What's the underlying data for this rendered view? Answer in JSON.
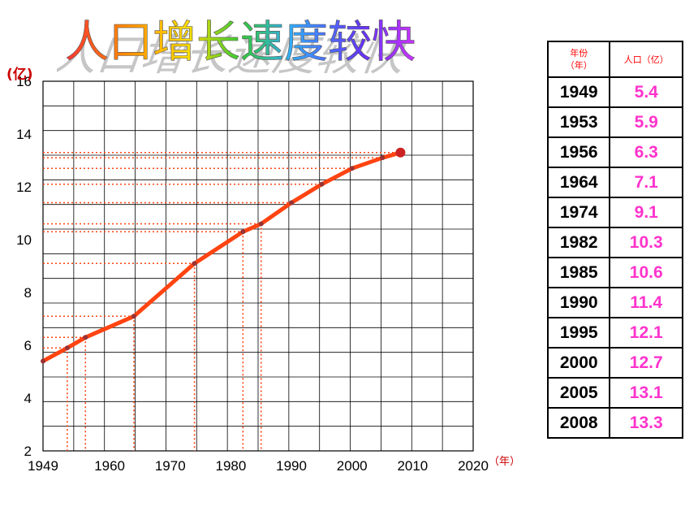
{
  "title": "人口增长速度较快",
  "table": {
    "header_year": "年份\n（年）",
    "header_pop": "人口（亿）",
    "rows": [
      {
        "year": "1949",
        "pop": "5.4"
      },
      {
        "year": "1953",
        "pop": "5.9"
      },
      {
        "year": "1956",
        "pop": "6.3"
      },
      {
        "year": "1964",
        "pop": "7.1"
      },
      {
        "year": "1974",
        "pop": "9.1"
      },
      {
        "year": "1982",
        "pop": "10.3"
      },
      {
        "year": "1985",
        "pop": "10.6"
      },
      {
        "year": "1990",
        "pop": "11.4"
      },
      {
        "year": "1995",
        "pop": "12.1"
      },
      {
        "year": "2000",
        "pop": "12.7"
      },
      {
        "year": "2005",
        "pop": "13.1"
      },
      {
        "year": "2008",
        "pop": "13.3"
      }
    ]
  },
  "chart_data": {
    "type": "line",
    "ylabel": "(亿)",
    "xlabel": "（年）",
    "xlim": [
      1949,
      2020
    ],
    "ylim": [
      2,
      16
    ],
    "x_ticks": [
      "1949",
      "1960",
      "1970",
      "1980",
      "1990",
      "2000",
      "2010",
      "2020"
    ],
    "y_ticks": [
      "16",
      "14",
      "12",
      "10",
      "8",
      "6",
      "4",
      "2"
    ],
    "grid": true,
    "color": "#ff4411",
    "x": [
      1949,
      1953,
      1956,
      1964,
      1974,
      1982,
      1985,
      1990,
      1995,
      2000,
      2005,
      2008
    ],
    "y": [
      5.4,
      5.9,
      6.3,
      7.1,
      9.1,
      10.3,
      10.6,
      11.4,
      12.1,
      12.7,
      13.1,
      13.3
    ]
  }
}
